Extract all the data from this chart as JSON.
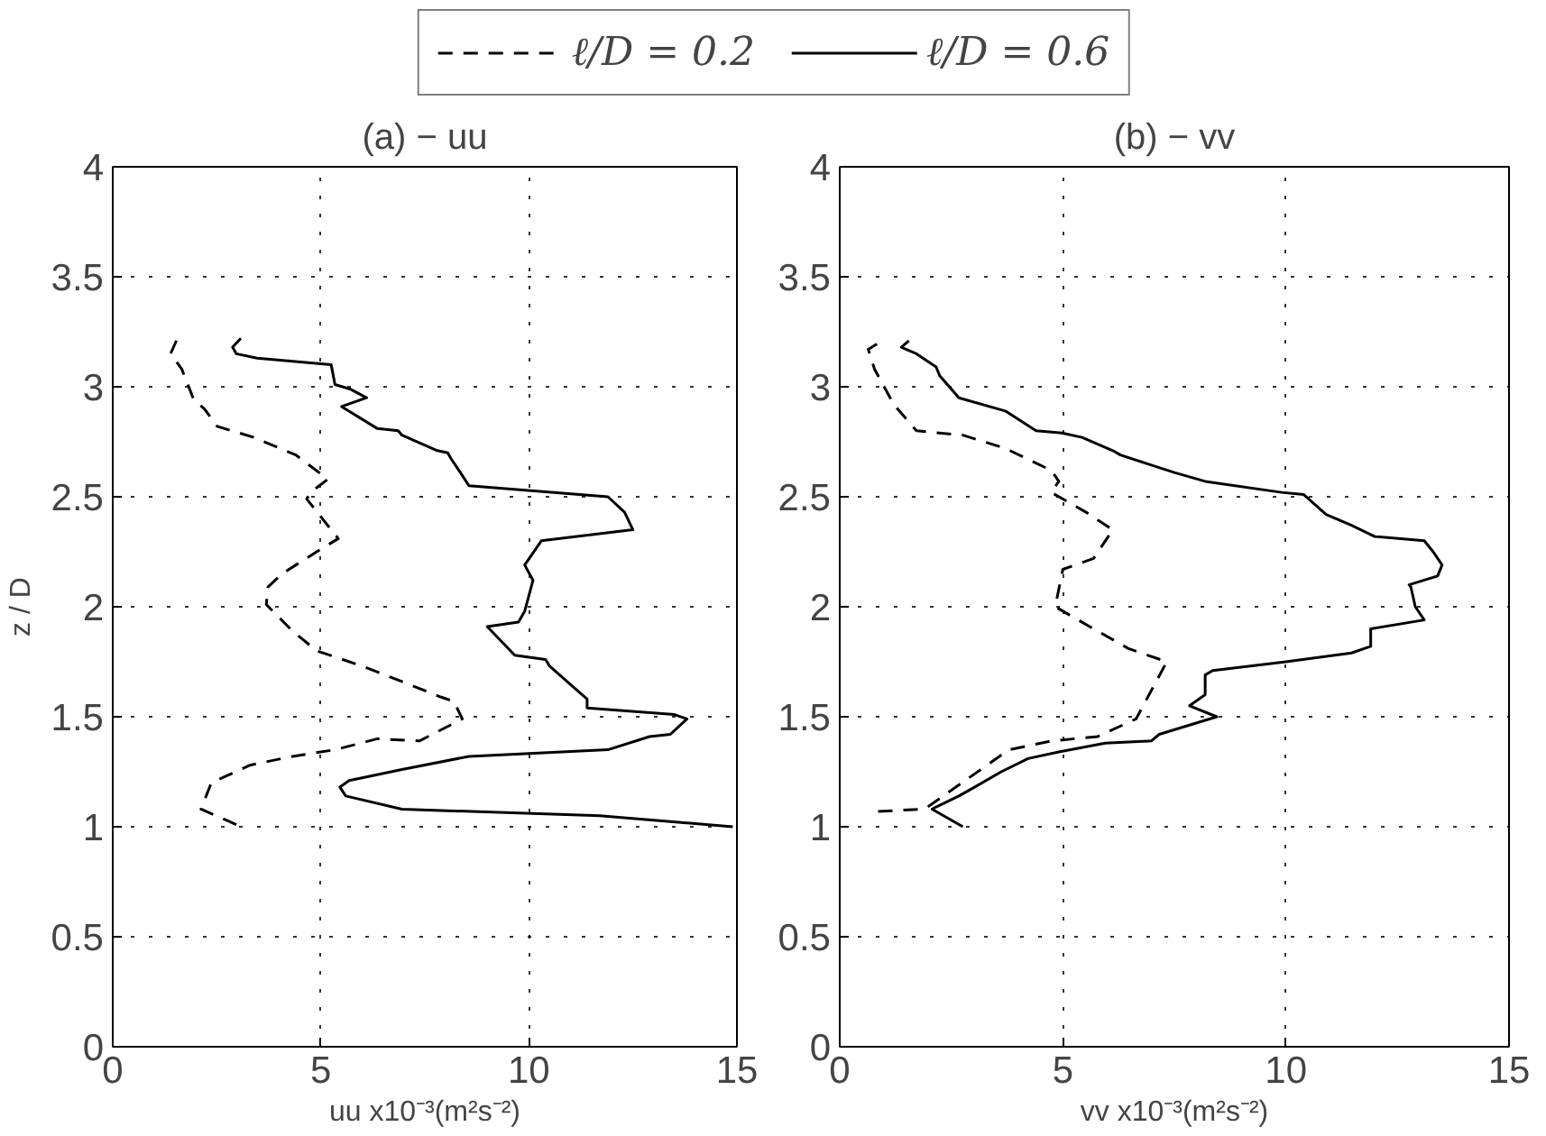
{
  "chart_data": [
    {
      "type": "line",
      "title": "(a) − uu",
      "xlabel": "uu x10⁻³(m²s⁻²)",
      "ylabel": "z / D",
      "xlim": [
        0,
        15
      ],
      "ylim": [
        0,
        4
      ],
      "xticks": [
        0,
        5,
        10,
        15
      ],
      "yticks": [
        0,
        0.5,
        1,
        1.5,
        2,
        2.5,
        3,
        3.5,
        4
      ],
      "grid": true,
      "legend": "top",
      "series": [
        {
          "name": "ℓ/D = 0.2",
          "color": "#000000",
          "line_style": "dashed",
          "x": [
            2.97,
            2.12,
            2.37,
            3.3,
            4.32,
            5.34,
            6.36,
            7.37,
            8.4,
            8.2,
            7.88,
            6.95,
            6.0,
            4.9,
            4.32,
            3.69,
            3.73,
            4.07,
            4.9,
            5.42,
            5.25,
            4.66,
            4.75,
            5.17,
            4.4,
            3.39,
            2.51,
            2.2,
            1.95,
            1.66,
            1.39,
            1.53
          ],
          "values": [
            1.01,
            1.08,
            1.2,
            1.28,
            1.32,
            1.35,
            1.4,
            1.39,
            1.49,
            1.57,
            1.59,
            1.66,
            1.73,
            1.8,
            1.89,
            2.01,
            2.09,
            2.15,
            2.25,
            2.31,
            2.35,
            2.49,
            2.52,
            2.58,
            2.69,
            2.77,
            2.82,
            2.9,
            2.94,
            3.08,
            3.15,
            3.21
          ]
        },
        {
          "name": "ℓ/D = 0.6",
          "color": "#000000",
          "line_style": "solid",
          "x": [
            14.9,
            11.7,
            6.95,
            5.6,
            5.46,
            5.68,
            6.95,
            8.56,
            11.9,
            12.9,
            13.4,
            13.8,
            13.5,
            11.4,
            11.4,
            10.5,
            10.4,
            9.66,
            9.0,
            9.75,
            9.9,
            10.1,
            9.9,
            10.3,
            12.5,
            12.3,
            11.9,
            8.56,
            8.39,
            8.14,
            8.05,
            7.8,
            6.95,
            6.86,
            6.36,
            5.5,
            6.1,
            5.7,
            5.34,
            5.25,
            3.47,
            2.97,
            2.88,
            3.08
          ],
          "values": [
            1.0,
            1.05,
            1.08,
            1.14,
            1.18,
            1.21,
            1.26,
            1.32,
            1.35,
            1.41,
            1.42,
            1.49,
            1.51,
            1.54,
            1.58,
            1.73,
            1.76,
            1.78,
            1.91,
            1.93,
            1.98,
            2.12,
            2.19,
            2.3,
            2.35,
            2.43,
            2.5,
            2.55,
            2.6,
            2.67,
            2.7,
            2.71,
            2.78,
            2.8,
            2.81,
            2.91,
            2.95,
            2.99,
            3.01,
            3.1,
            3.13,
            3.15,
            3.18,
            3.22
          ]
        }
      ]
    },
    {
      "type": "line",
      "title": "(b) − vv",
      "xlabel": "vv x10⁻³(m²s⁻²)",
      "xlim": [
        0,
        15
      ],
      "ylim": [
        0,
        4
      ],
      "xticks": [
        0,
        5,
        10,
        15
      ],
      "yticks": [
        0,
        0.5,
        1,
        1.5,
        2,
        2.5,
        3,
        3.5,
        4
      ],
      "grid": true,
      "series": [
        {
          "color": "#000000",
          "line_style": "dashed",
          "x": [
            0.86,
            1.9,
            3.79,
            4.74,
            5.78,
            6.64,
            7.33,
            6.47,
            5.6,
            4.83,
            5.0,
            5.69,
            6.12,
            5.52,
            4.74,
            4.91,
            4.74,
            3.71,
            2.76,
            1.72,
            1.21,
            0.78,
            0.64,
            0.95
          ],
          "values": [
            1.07,
            1.08,
            1.35,
            1.39,
            1.41,
            1.49,
            1.75,
            1.81,
            1.91,
            2.0,
            2.17,
            2.22,
            2.35,
            2.43,
            2.52,
            2.57,
            2.62,
            2.72,
            2.78,
            2.8,
            2.92,
            3.08,
            3.17,
            3.21
          ]
        },
        {
          "color": "#000000",
          "line_style": "solid",
          "x": [
            2.76,
            2.07,
            2.16,
            2.67,
            3.02,
            3.62,
            4.22,
            4.91,
            5.95,
            6.98,
            7.16,
            8.45,
            7.84,
            8.19,
            8.19,
            8.36,
            10.0,
            11.47,
            11.9,
            11.9,
            13.1,
            12.9,
            12.8,
            12.76,
            13.4,
            13.5,
            13.3,
            13.1,
            11.98,
            11.47,
            10.9,
            10.4,
            9.9,
            8.19,
            7.5,
            6.29,
            6.12,
            5.43,
            4.98,
            4.4,
            3.71,
            2.67,
            2.5,
            2.24,
            2.16,
            1.72,
            1.38,
            1.55
          ],
          "values": [
            1.0,
            1.08,
            1.09,
            1.14,
            1.18,
            1.25,
            1.31,
            1.34,
            1.38,
            1.39,
            1.42,
            1.5,
            1.55,
            1.6,
            1.69,
            1.71,
            1.75,
            1.79,
            1.82,
            1.9,
            1.94,
            2.0,
            2.09,
            2.1,
            2.14,
            2.19,
            2.25,
            2.3,
            2.32,
            2.37,
            2.42,
            2.51,
            2.52,
            2.57,
            2.61,
            2.69,
            2.71,
            2.77,
            2.79,
            2.8,
            2.89,
            2.95,
            2.99,
            3.05,
            3.09,
            3.15,
            3.18,
            3.21
          ]
        }
      ]
    }
  ]
}
